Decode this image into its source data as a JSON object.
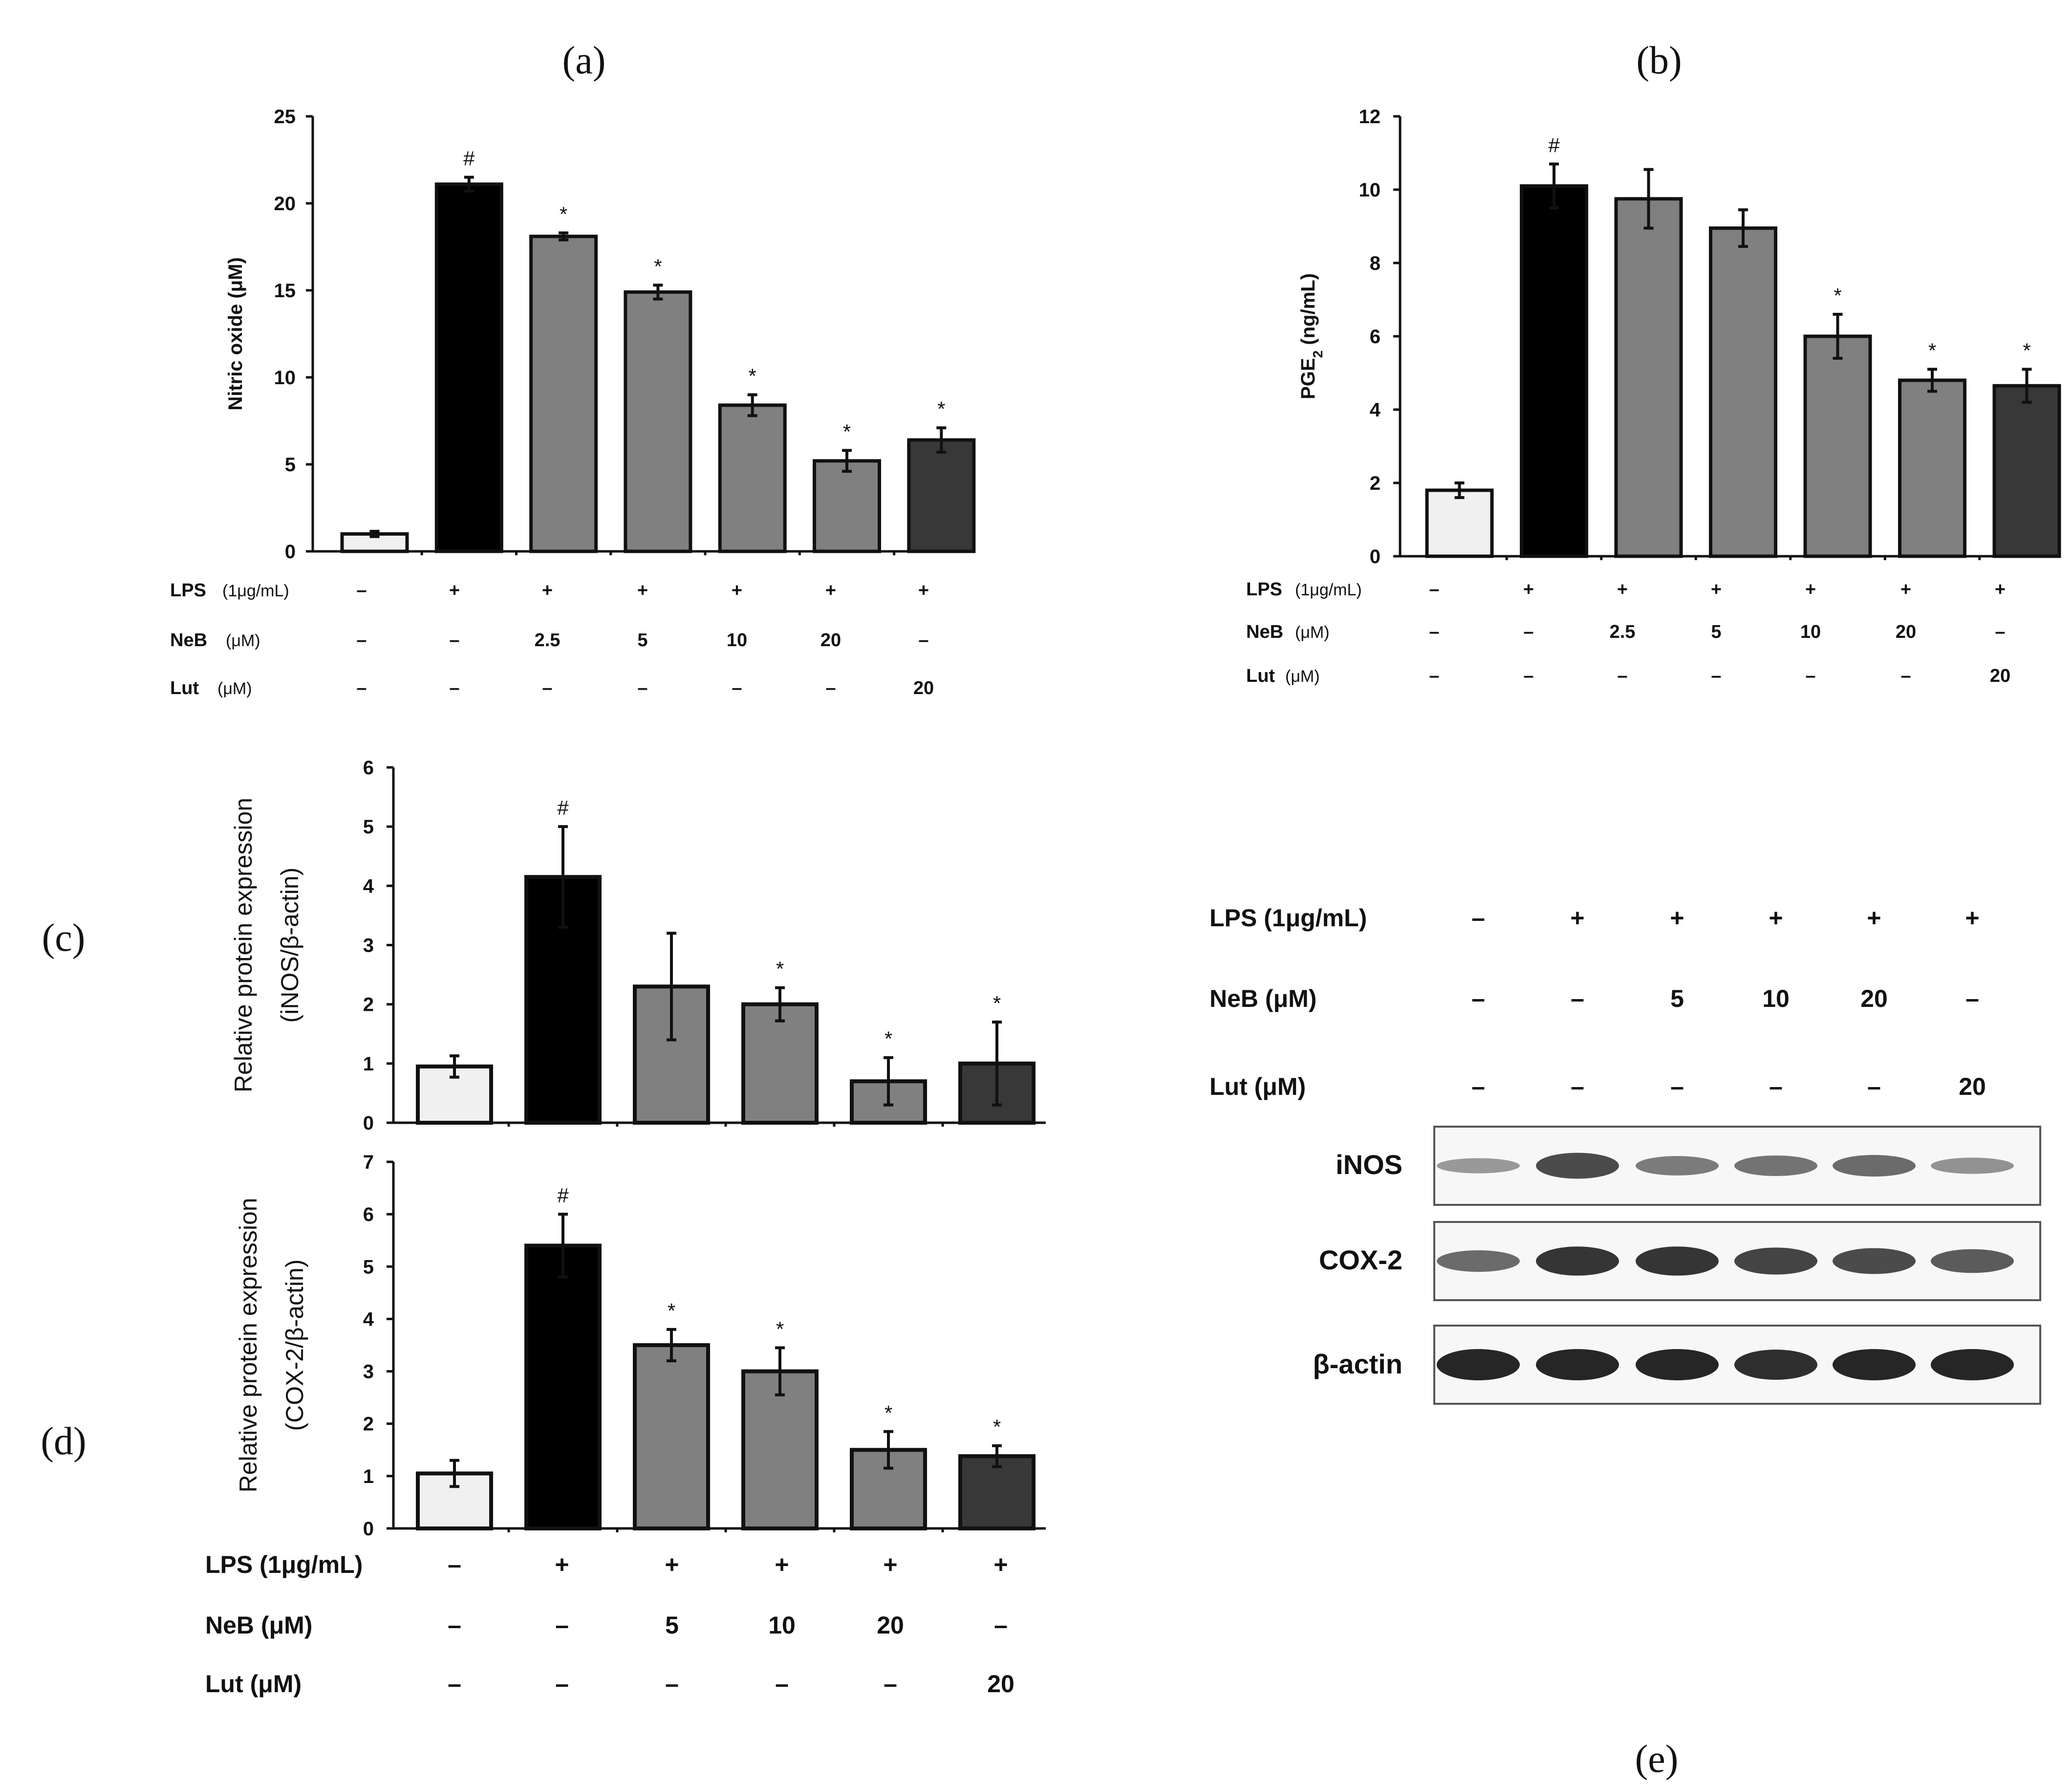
{
  "panel_labels": [
    "(a)",
    "(b)",
    "(c)",
    "(d)",
    "(e)"
  ],
  "treatments": {
    "ab": {
      "lps": {
        "label": "LPS",
        "unit": "(1μg/mL)",
        "values": [
          "–",
          "+",
          "+",
          "+",
          "+",
          "+",
          "+"
        ]
      },
      "neb": {
        "label": "NeB",
        "unit": "(μM)",
        "values": [
          "–",
          "–",
          "2.5",
          "5",
          "10",
          "20",
          "–"
        ]
      },
      "lut": {
        "label": "Lut",
        "unit": "(μM)",
        "values": [
          "–",
          "–",
          "–",
          "–",
          "–",
          "–",
          "20"
        ]
      }
    },
    "cde": {
      "lps": {
        "label": "LPS (1μg/mL)",
        "values": [
          "–",
          "+",
          "+",
          "+",
          "+",
          "+"
        ]
      },
      "neb": {
        "label": "NeB (μM)",
        "values": [
          "–",
          "–",
          "5",
          "10",
          "20",
          "–"
        ]
      },
      "lut": {
        "label": "Lut (μM)",
        "values": [
          "–",
          "–",
          "–",
          "–",
          "–",
          "20"
        ]
      }
    }
  },
  "colors": {
    "control": "#f0f0f0",
    "lps": "#000000",
    "neb": "#808080",
    "lut": "#383838",
    "axis": "#111111",
    "band": "#1a1a1a"
  },
  "chart_data": [
    {
      "id": "a",
      "type": "bar",
      "title": "(a)",
      "ylabel": "Nitric oxide (μM)",
      "ylim": [
        0,
        25
      ],
      "yticks": [
        0,
        5,
        10,
        15,
        20,
        25
      ],
      "categories": [
        "Control",
        "LPS",
        "NeB 2.5",
        "NeB 5",
        "NeB 10",
        "NeB 20",
        "Lut 20"
      ],
      "values": [
        1.0,
        21.1,
        18.1,
        14.9,
        8.4,
        5.2,
        6.4
      ],
      "errors": [
        0.15,
        0.4,
        0.2,
        0.4,
        0.6,
        0.6,
        0.7
      ],
      "annotations": [
        "",
        "#",
        "*",
        "*",
        "*",
        "*",
        "*"
      ]
    },
    {
      "id": "b",
      "type": "bar",
      "title": "(b)",
      "ylabel_main": "PGE",
      "ylabel_sub": "2",
      "ylabel_tail": " (ng/mL)",
      "ylim": [
        0,
        12
      ],
      "yticks": [
        0,
        2,
        4,
        6,
        8,
        10,
        12
      ],
      "categories": [
        "Control",
        "LPS",
        "NeB 2.5",
        "NeB 5",
        "NeB 10",
        "NeB 20",
        "Lut 20"
      ],
      "values": [
        1.8,
        10.1,
        9.75,
        8.95,
        6.0,
        4.8,
        4.65
      ],
      "errors": [
        0.2,
        0.6,
        0.8,
        0.5,
        0.6,
        0.3,
        0.45
      ],
      "annotations": [
        "",
        "#",
        "",
        "",
        "*",
        "*",
        "*"
      ]
    },
    {
      "id": "c",
      "type": "bar",
      "title": "(c)",
      "ylabel_lines": [
        "Relative protein expression",
        "(iNOS/β-actin)"
      ],
      "ylim": [
        0,
        6
      ],
      "yticks": [
        0,
        1,
        2,
        3,
        4,
        5,
        6
      ],
      "categories": [
        "Control",
        "LPS",
        "NeB 5",
        "NeB 10",
        "NeB 20",
        "Lut 20"
      ],
      "values": [
        0.95,
        4.15,
        2.3,
        2.0,
        0.7,
        1.0
      ],
      "errors": [
        0.18,
        0.85,
        0.9,
        0.28,
        0.4,
        0.7
      ],
      "annotations": [
        "",
        "#",
        "",
        "*",
        "*",
        "*"
      ]
    },
    {
      "id": "d",
      "type": "bar",
      "title": "(d)",
      "ylabel_lines": [
        "Relative protein expression",
        "(COX-2/β-actin)"
      ],
      "ylim": [
        0,
        7
      ],
      "yticks": [
        0,
        1,
        2,
        3,
        4,
        5,
        6,
        7
      ],
      "categories": [
        "Control",
        "LPS",
        "NeB 5",
        "NeB 10",
        "NeB 20",
        "Lut 20"
      ],
      "values": [
        1.05,
        5.4,
        3.5,
        3.0,
        1.5,
        1.38
      ],
      "errors": [
        0.25,
        0.6,
        0.3,
        0.45,
        0.35,
        0.2
      ],
      "annotations": [
        "",
        "#",
        "*",
        "*",
        "*",
        "*"
      ]
    }
  ],
  "blot": {
    "title": "(e)",
    "rows": [
      {
        "label": "iNOS",
        "intensities": [
          0.25,
          0.75,
          0.45,
          0.5,
          0.55,
          0.3
        ]
      },
      {
        "label": "COX-2",
        "intensities": [
          0.55,
          0.9,
          0.9,
          0.8,
          0.75,
          0.65
        ]
      },
      {
        "label": "β-actin",
        "intensities": [
          1.0,
          1.0,
          1.0,
          0.95,
          1.0,
          1.0
        ]
      }
    ]
  }
}
